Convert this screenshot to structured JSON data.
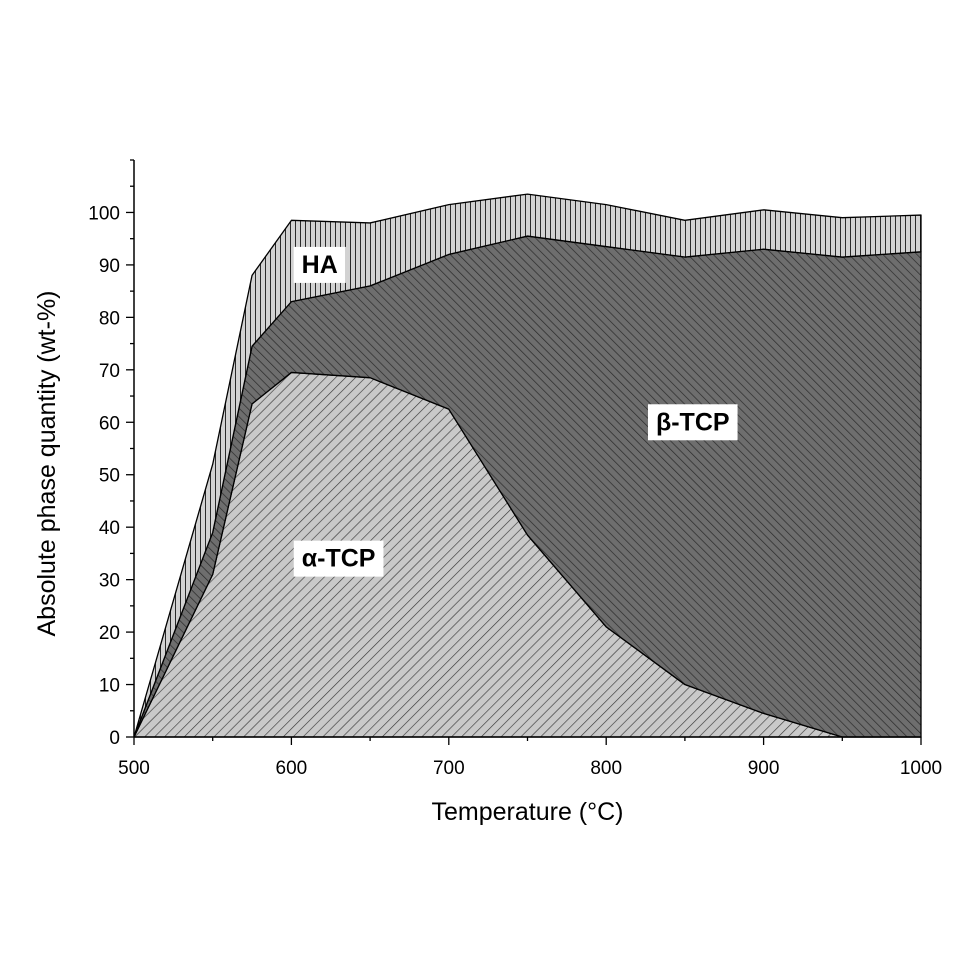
{
  "chart_data": {
    "type": "area",
    "stacked": true,
    "xlabel": "Temperature (°C)",
    "ylabel": "Absolute phase quantity (wt-%)",
    "xlim": [
      500,
      1000
    ],
    "ylim": [
      0,
      110
    ],
    "xticks": [
      500,
      600,
      700,
      800,
      900,
      1000
    ],
    "yticks": [
      0,
      10,
      20,
      30,
      40,
      50,
      60,
      70,
      80,
      90,
      100
    ],
    "grid": false,
    "x": [
      500,
      550,
      575,
      600,
      650,
      700,
      750,
      800,
      850,
      900,
      950,
      1000
    ],
    "series": [
      {
        "name": "α-TCP",
        "pattern": "light-diagonal",
        "fill": "#c8c8c8",
        "values": [
          0,
          31,
          63.5,
          69.5,
          68.5,
          62.5,
          38.5,
          21,
          10,
          4.5,
          0,
          0
        ],
        "label_at": [
          630,
          34
        ]
      },
      {
        "name": "β-TCP",
        "pattern": "dark-diagonal",
        "fill": "#666666",
        "values": [
          0,
          8,
          11,
          13.5,
          17.5,
          29.5,
          57,
          72.5,
          81.5,
          88.5,
          91.5,
          92.5
        ],
        "label_at": [
          855,
          60
        ]
      },
      {
        "name": "HA",
        "pattern": "vertical-lines",
        "fill": "#cccccc",
        "values": [
          0,
          13,
          13.5,
          15.5,
          12,
          9.5,
          8,
          8,
          7,
          7.5,
          7.5,
          7
        ],
        "label_at": [
          618,
          90
        ]
      }
    ]
  }
}
